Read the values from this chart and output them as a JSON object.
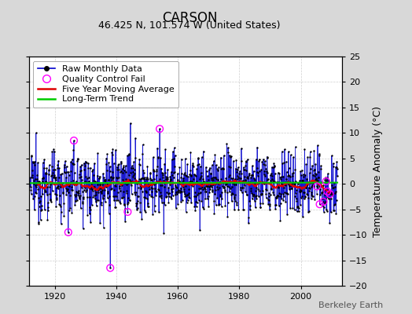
{
  "title": "CARSON",
  "subtitle": "46.425 N, 101.574 W (United States)",
  "ylabel_right": "Temperature Anomaly (°C)",
  "watermark": "Berkeley Earth",
  "start_year": 1912.0,
  "end_year": 2011.9,
  "ylim": [
    -20,
    25
  ],
  "yticks": [
    -20,
    -15,
    -10,
    -5,
    0,
    5,
    10,
    15,
    20,
    25
  ],
  "xticks": [
    1920,
    1940,
    1960,
    1980,
    2000
  ],
  "bg_color": "#d8d8d8",
  "plot_bg_color": "#ffffff",
  "line_color": "#0000cc",
  "dot_color": "#000000",
  "ma_color": "#dd0000",
  "trend_color": "#00cc00",
  "qc_color": "#ff00ff",
  "seed": 12345,
  "n_months": 1200,
  "title_fontsize": 12,
  "subtitle_fontsize": 9,
  "tick_fontsize": 8,
  "legend_fontsize": 8,
  "watermark_fontsize": 8,
  "noise_std": 3.0,
  "qc_indices": [
    148,
    170,
    312,
    380,
    505,
    1120,
    1130,
    1145,
    1155,
    1160,
    1170
  ],
  "qc_values": [
    -9.5,
    8.5,
    -16.5,
    -5.5,
    10.8,
    -0.5,
    -4.0,
    -3.5,
    0.5,
    -1.5,
    -2.0
  ],
  "trend_intercept": 0.2,
  "trend_slope": 0.001
}
